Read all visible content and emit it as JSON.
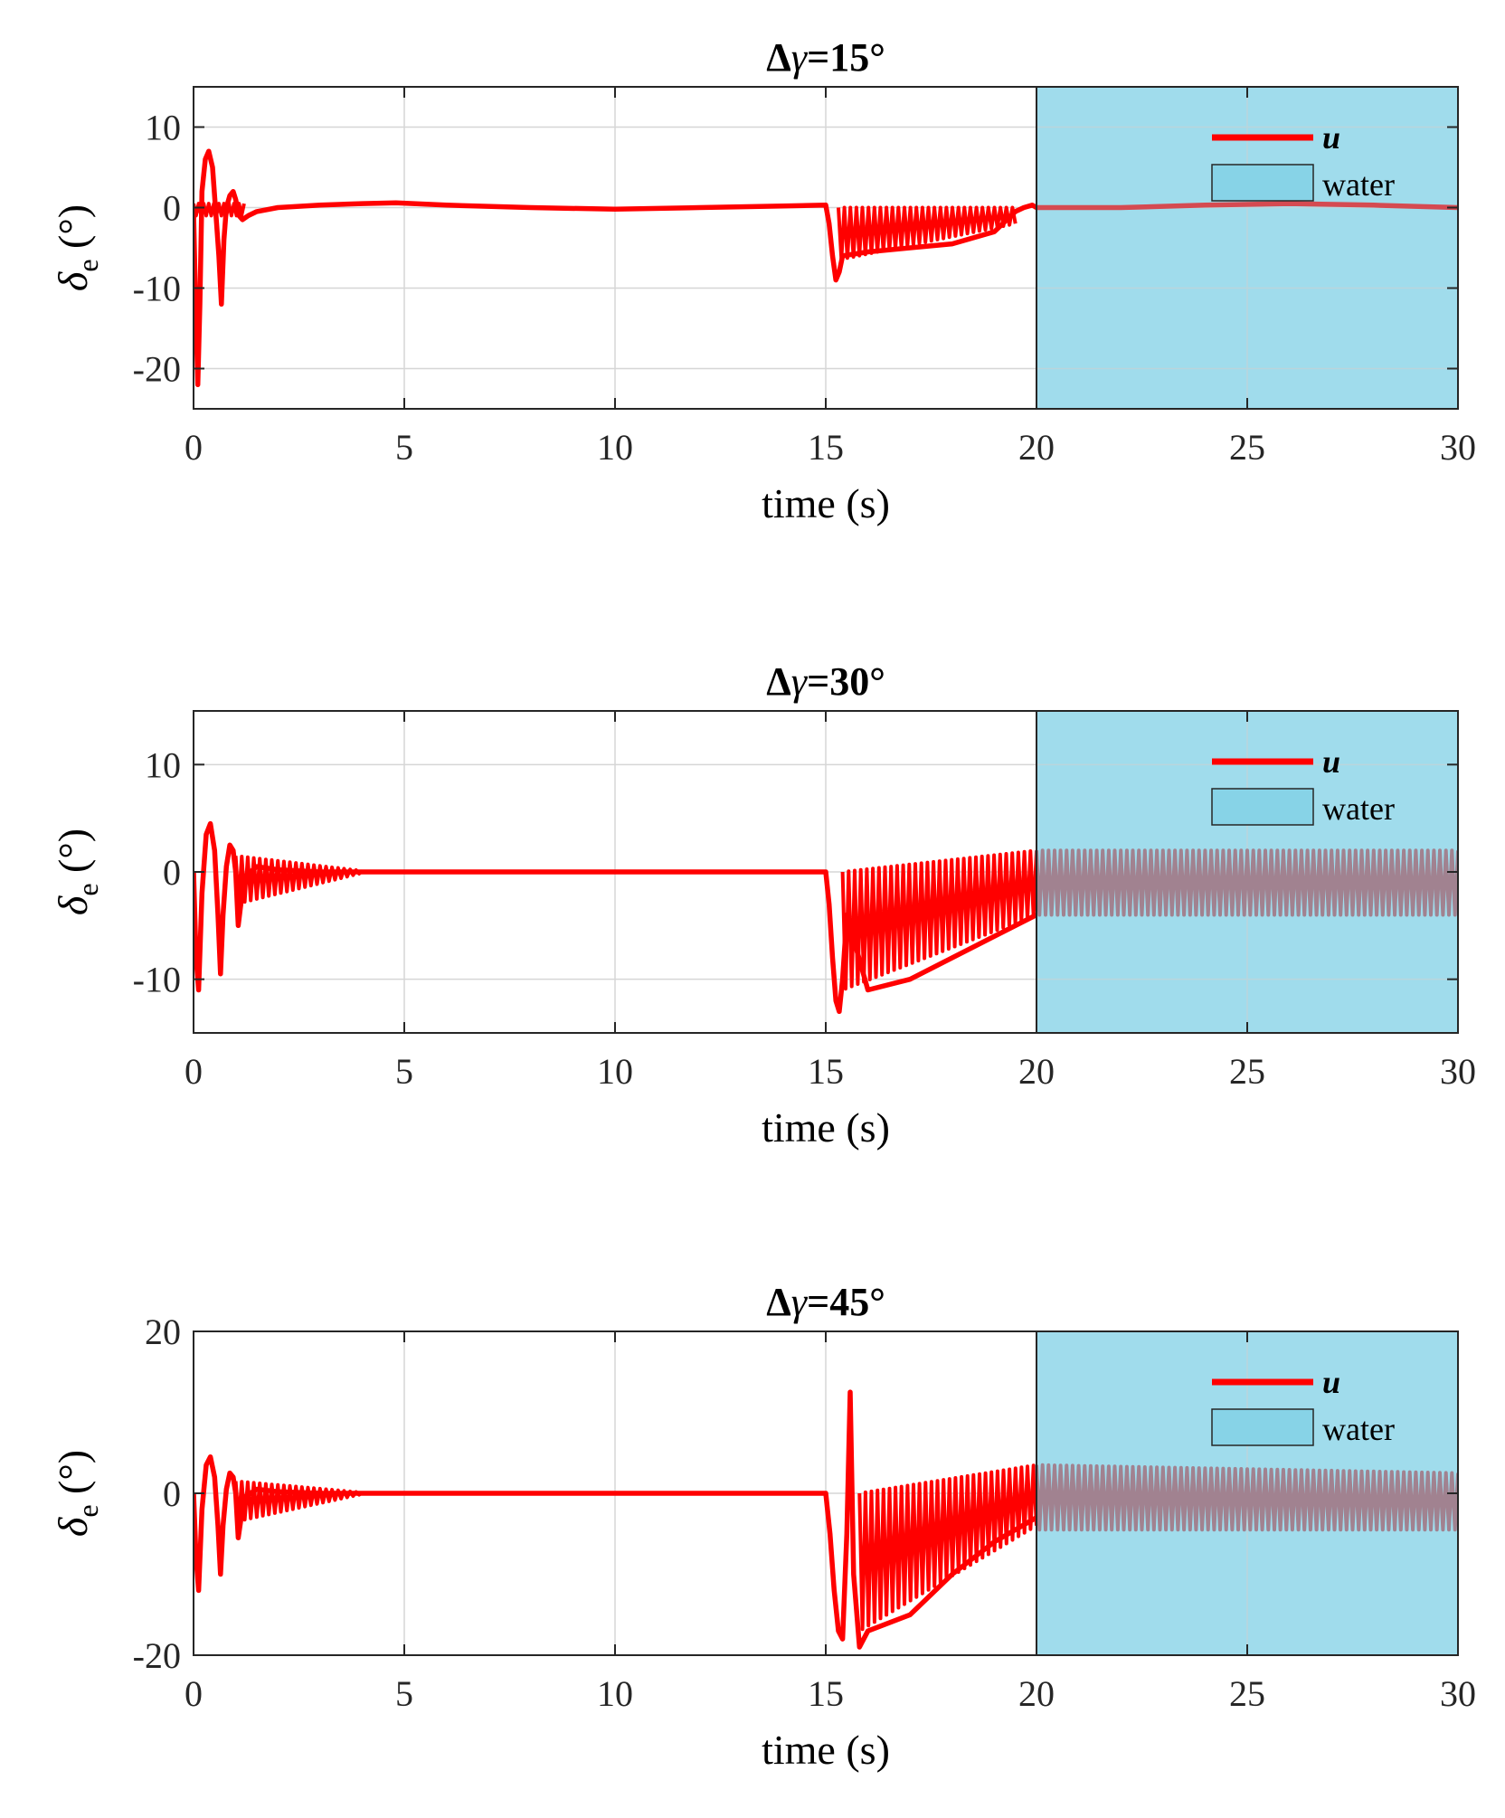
{
  "chart_data": [
    {
      "type": "line",
      "title": "Δγ=15°",
      "title_delta": "Δ",
      "title_gamma": "γ",
      "title_rest": "=15°",
      "xlabel": "time (s)",
      "ylabel_symbol": "δ",
      "ylabel_sub": "e",
      "ylabel_unit": " (°)",
      "xlim": [
        0,
        30
      ],
      "ylim": [
        -25,
        15
      ],
      "xticks": [
        0,
        5,
        10,
        15,
        20,
        25,
        30
      ],
      "yticks": [
        -20,
        -10,
        0,
        10
      ],
      "shaded_region": {
        "x_start": 20,
        "x_end": 30,
        "label": "water",
        "color": "#87d3e7"
      },
      "legend": [
        {
          "label": "u",
          "color": "#ff0000"
        },
        {
          "label": "water",
          "color": "#87d3e7"
        }
      ],
      "legend_position": "top-right",
      "grid": true,
      "series": [
        {
          "name": "u",
          "color": "#ff0000",
          "x": [
            0,
            0.05,
            0.1,
            0.15,
            0.2,
            0.28,
            0.36,
            0.45,
            0.52,
            0.6,
            0.66,
            0.72,
            0.78,
            0.86,
            0.94,
            1.0,
            1.08,
            1.16,
            1.3,
            1.5,
            2,
            3,
            4,
            4.8,
            6,
            8,
            10,
            12,
            14,
            15,
            15.08,
            15.16,
            15.24,
            15.32,
            15.4,
            16,
            17,
            18,
            19,
            19.3,
            19.5,
            19.7,
            19.9,
            20,
            22,
            24,
            26,
            28,
            30
          ],
          "y": [
            -0.5,
            -12,
            -22,
            -12,
            2,
            6,
            7,
            5,
            0,
            -6,
            -12,
            -4,
            0,
            1.5,
            2,
            1,
            -1,
            -1.5,
            -1,
            -0.5,
            0,
            0.3,
            0.5,
            0.6,
            0.3,
            0,
            -0.2,
            0,
            0.2,
            0.3,
            -2,
            -6,
            -9,
            -8,
            -6,
            -5.5,
            -5,
            -4.5,
            -3,
            -1.5,
            -0.5,
            0,
            0.3,
            0,
            0,
            0.3,
            0.5,
            0.3,
            0
          ],
          "band": [
            {
              "x_start": 0.0,
              "x_end": 1.2,
              "upper": [
                0.5,
                0.5
              ],
              "lower": [
                -1,
                -1
              ]
            },
            {
              "x_start": 15.3,
              "x_end": 19.5,
              "upper": [
                0,
                0
              ],
              "lower": [
                -6.5,
                -2
              ]
            }
          ]
        }
      ]
    },
    {
      "type": "line",
      "title": "Δγ=30°",
      "title_delta": "Δ",
      "title_gamma": "γ",
      "title_rest": "=30°",
      "xlabel": "time (s)",
      "ylabel_symbol": "δ",
      "ylabel_sub": "e",
      "ylabel_unit": " (°)",
      "xlim": [
        0,
        30
      ],
      "ylim": [
        -15,
        15
      ],
      "xticks": [
        0,
        5,
        10,
        15,
        20,
        25,
        30
      ],
      "yticks": [
        -10,
        0,
        10
      ],
      "shaded_region": {
        "x_start": 20,
        "x_end": 30,
        "label": "water",
        "color": "#87d3e7"
      },
      "legend": [
        {
          "label": "u",
          "color": "#ff0000"
        },
        {
          "label": "water",
          "color": "#87d3e7"
        }
      ],
      "legend_position": "top-right",
      "grid": true,
      "series": [
        {
          "name": "u",
          "color": "#ff0000",
          "x": [
            0,
            0.06,
            0.12,
            0.2,
            0.3,
            0.4,
            0.5,
            0.58,
            0.64,
            0.7,
            0.78,
            0.86,
            0.94,
            1.0,
            1.06,
            1.2,
            1.5,
            2,
            3,
            4,
            5,
            10,
            14,
            15,
            15.08,
            15.16,
            15.24,
            15.32,
            15.4,
            15.5,
            16,
            17,
            18,
            19,
            20
          ],
          "y": [
            0,
            -8,
            -11,
            -2,
            3.5,
            4.5,
            2,
            -4,
            -9.5,
            -4,
            0.5,
            2.5,
            2,
            0,
            -5,
            -0.5,
            0.5,
            0.2,
            0,
            0,
            0,
            0,
            0,
            0,
            -3,
            -8,
            -12,
            -13,
            -10,
            -4,
            -11,
            -10,
            -8,
            -6,
            -4
          ],
          "band": [
            {
              "x_start": 1.0,
              "x_end": 4.0,
              "upper": [
                1.5,
                0.1
              ],
              "lower": [
                -3,
                -0.1
              ]
            },
            {
              "x_start": 15.4,
              "x_end": 20,
              "upper": [
                0,
                2
              ],
              "lower": [
                -11,
                -4
              ]
            },
            {
              "x_start": 20,
              "x_end": 30,
              "upper": [
                2,
                2
              ],
              "lower": [
                -4,
                -4
              ],
              "color": "#b05661"
            }
          ]
        }
      ]
    },
    {
      "type": "line",
      "title": "Δγ=45°",
      "title_delta": "Δ",
      "title_gamma": "γ",
      "title_rest": "=45°",
      "xlabel": "time (s)",
      "ylabel_symbol": "δ",
      "ylabel_sub": "e",
      "ylabel_unit": " (°)",
      "xlim": [
        0,
        30
      ],
      "ylim": [
        -20,
        20
      ],
      "xticks": [
        0,
        5,
        10,
        15,
        20,
        25,
        30
      ],
      "yticks": [
        -20,
        0,
        20
      ],
      "shaded_region": {
        "x_start": 20,
        "x_end": 30,
        "label": "water",
        "color": "#87d3e7"
      },
      "legend": [
        {
          "label": "u",
          "color": "#ff0000"
        },
        {
          "label": "water",
          "color": "#87d3e7"
        }
      ],
      "legend_position": "top-right",
      "grid": true,
      "series": [
        {
          "name": "u",
          "color": "#ff0000",
          "x": [
            0,
            0.06,
            0.12,
            0.2,
            0.3,
            0.4,
            0.5,
            0.58,
            0.64,
            0.7,
            0.78,
            0.86,
            0.94,
            1.0,
            1.06,
            1.2,
            1.5,
            2,
            3,
            4,
            5,
            10,
            14,
            15,
            15.1,
            15.2,
            15.3,
            15.4,
            15.5,
            15.58,
            15.66,
            15.8,
            16,
            17,
            18,
            19,
            20
          ],
          "y": [
            0,
            -8,
            -12,
            -2,
            3.5,
            4.5,
            2,
            -4,
            -10,
            -4,
            0.5,
            2.5,
            2,
            0,
            -5.5,
            -0.5,
            0.5,
            0.2,
            0,
            0,
            0,
            0,
            0,
            0,
            -5,
            -12,
            -17,
            -18,
            -5,
            12.5,
            -10,
            -19,
            -17,
            -15,
            -10,
            -6,
            -3
          ],
          "band": [
            {
              "x_start": 1.0,
              "x_end": 4.0,
              "upper": [
                1.5,
                0.1
              ],
              "lower": [
                -3.5,
                -0.1
              ]
            },
            {
              "x_start": 15.8,
              "x_end": 20,
              "upper": [
                0,
                3.5
              ],
              "lower": [
                -17,
                -4
              ]
            },
            {
              "x_start": 20,
              "x_end": 30,
              "upper": [
                3.5,
                2.5
              ],
              "lower": [
                -4.5,
                -4.5
              ],
              "color": "#b05661"
            }
          ]
        }
      ]
    }
  ]
}
